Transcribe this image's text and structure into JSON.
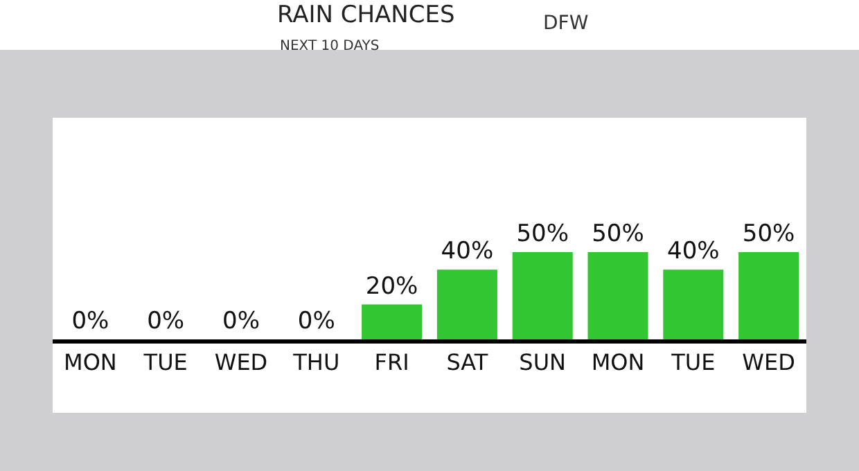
{
  "chart_data": {
    "type": "bar",
    "title": "RAIN CHANCES",
    "subtitle": "NEXT 10 DAYS",
    "annotations": [
      "DFW"
    ],
    "categories": [
      "MON",
      "TUE",
      "WED",
      "THU",
      "FRI",
      "SAT",
      "SUN",
      "MON",
      "TUE",
      "WED"
    ],
    "values": [
      0,
      0,
      0,
      0,
      20,
      40,
      50,
      50,
      40,
      50
    ],
    "value_labels": [
      "0%",
      "0%",
      "0%",
      "0%",
      "20%",
      "40%",
      "50%",
      "50%",
      "40%",
      "50%"
    ],
    "color": "#33c633",
    "legend": false
  }
}
